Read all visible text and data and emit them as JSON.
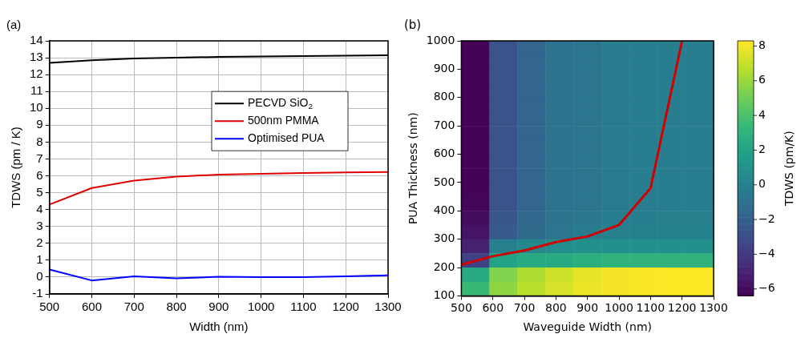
{
  "chart_data": [
    {
      "type": "line",
      "title": "(a)",
      "xlabel": "Width (nm)",
      "ylabel": "TDWS (pm / K)",
      "x": [
        500,
        600,
        700,
        800,
        900,
        1000,
        1100,
        1200,
        1300
      ],
      "series": [
        {
          "name": "PECVD SiO$_{2}$",
          "color": "#000000",
          "values": [
            12.7,
            12.85,
            12.95,
            13.0,
            13.05,
            13.07,
            13.1,
            13.12,
            13.15
          ]
        },
        {
          "name": "500nm PMMA",
          "color": "#e00000",
          "values": [
            4.3,
            5.28,
            5.72,
            5.95,
            6.07,
            6.12,
            6.17,
            6.2,
            6.23
          ]
        },
        {
          "name": "Optimised PUA",
          "color": "#0000ff",
          "values": [
            0.45,
            -0.2,
            0.05,
            -0.08,
            0.02,
            0,
            0,
            0.05,
            0.1
          ]
        }
      ],
      "xlim": [
        500,
        1300
      ],
      "xticks": [
        500,
        600,
        700,
        800,
        900,
        1000,
        1100,
        1200,
        1300
      ],
      "ylim": [
        -1,
        14
      ],
      "yticks": [
        -1,
        0,
        1,
        2,
        3,
        4,
        5,
        6,
        7,
        8,
        9,
        10,
        11,
        12,
        13,
        14
      ],
      "grid": true,
      "legend": "top right"
    },
    {
      "type": "heatmap",
      "title": "(b)",
      "xlabel": "Waveguide Width (nm)",
      "ylabel": "PUA Thickness (nm)",
      "clabel": "TDWS (pm/K)",
      "x": [
        544.4,
        633.3,
        722.2,
        811.1,
        900,
        988.9,
        1077.8,
        1166.7,
        1255.6
      ],
      "y": [
        975,
        925,
        875,
        825,
        775,
        725,
        675,
        625,
        575,
        525,
        475,
        425,
        375,
        325,
        275,
        225,
        175,
        125
      ],
      "cells": [
        [
          -6.3,
          -2.6,
          -1.6,
          -0.9,
          -0.6,
          -0.3,
          -0.2,
          -0.1,
          -0.1
        ],
        [
          -6.3,
          -2.6,
          -1.6,
          -0.9,
          -0.6,
          -0.3,
          -0.2,
          -0.1,
          -0.1
        ],
        [
          -6.3,
          -2.6,
          -1.6,
          -0.9,
          -0.6,
          -0.3,
          -0.2,
          -0.1,
          -0.1
        ],
        [
          -6.3,
          -2.6,
          -1.6,
          -0.9,
          -0.6,
          -0.3,
          -0.2,
          -0.1,
          -0.1
        ],
        [
          -6.3,
          -2.6,
          -1.6,
          -0.9,
          -0.6,
          -0.3,
          -0.2,
          -0.1,
          -0.1
        ],
        [
          -6.3,
          -2.6,
          -1.6,
          -0.9,
          -0.6,
          -0.3,
          -0.2,
          -0.1,
          -0.1
        ],
        [
          -6.3,
          -2.6,
          -1.6,
          -0.9,
          -0.6,
          -0.3,
          -0.2,
          -0.1,
          -0.1
        ],
        [
          -6.3,
          -2.6,
          -1.6,
          -0.9,
          -0.6,
          -0.3,
          -0.2,
          -0.1,
          -0.1
        ],
        [
          -6.3,
          -2.6,
          -1.6,
          -0.9,
          -0.6,
          -0.3,
          -0.2,
          -0.1,
          -0.1
        ],
        [
          -6.3,
          -2.6,
          -1.6,
          -0.9,
          -0.6,
          -0.3,
          -0.2,
          -0.1,
          -0.1
        ],
        [
          -6.3,
          -2.6,
          -1.6,
          -0.9,
          -0.6,
          -0.3,
          -0.2,
          -0.1,
          -0.1
        ],
        [
          -6.2,
          -2.6,
          -1.6,
          -0.9,
          -0.6,
          -0.3,
          -0.2,
          -0.1,
          -0.1
        ],
        [
          -6.0,
          -2.5,
          -1.5,
          -0.8,
          -0.5,
          -0.2,
          -0.1,
          0,
          0
        ],
        [
          -5.6,
          -2.2,
          -1.3,
          -0.6,
          -0.3,
          0,
          0.1,
          0.1,
          0.1
        ],
        [
          -5.0,
          0,
          0.5,
          0.8,
          1,
          1,
          1,
          1,
          1
        ],
        [
          -3.5,
          2,
          2.5,
          2.5,
          2.8,
          3,
          3,
          3,
          3
        ],
        [
          2.5,
          5.5,
          6.5,
          7.2,
          7.8,
          8.1,
          8.2,
          8.3,
          8.3
        ],
        [
          3.5,
          5.8,
          6.8,
          7.4,
          7.9,
          8.1,
          8.2,
          8.3,
          8.3
        ]
      ],
      "clim": [
        -6.4,
        8.3
      ],
      "cticks": [
        {
          "value": -6,
          "label": "−6"
        },
        {
          "value": -4,
          "label": "−4"
        },
        {
          "value": -2,
          "label": "−2"
        },
        0,
        2,
        4,
        6,
        8
      ],
      "series": [
        {
          "type": "line",
          "color": "#d00000",
          "x": [
            500,
            600,
            700,
            800,
            900,
            1000,
            1100,
            1200
          ],
          "values": [
            210,
            240,
            260,
            290,
            310,
            350,
            480,
            1000
          ]
        }
      ],
      "xlim": [
        500,
        1300
      ],
      "xticks": [
        500,
        600,
        700,
        800,
        900,
        1000,
        1100,
        1200,
        1300
      ],
      "ylim": [
        100,
        1000
      ],
      "yticks": [
        100,
        200,
        300,
        400,
        500,
        600,
        700,
        800,
        900,
        1000
      ]
    }
  ]
}
